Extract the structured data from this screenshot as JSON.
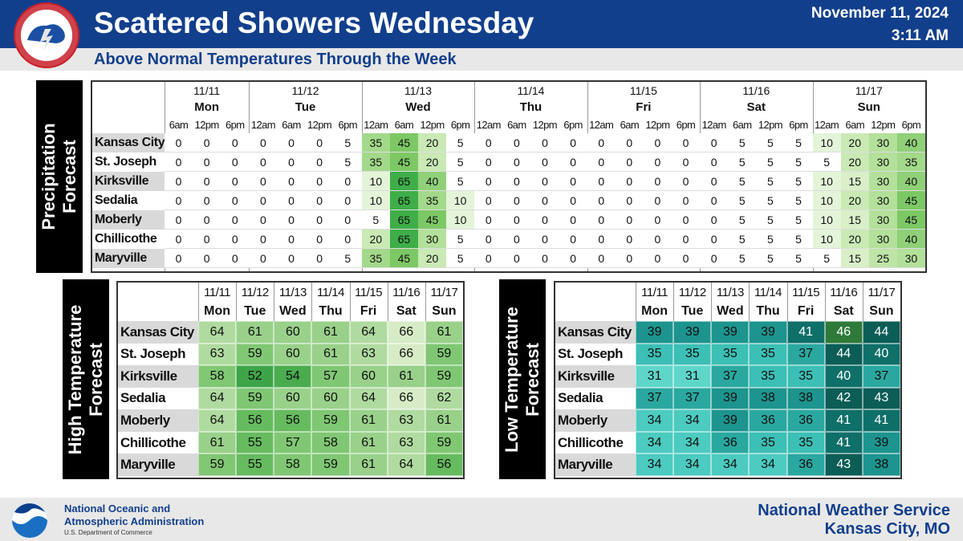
{
  "header": {
    "title": "Scattered Showers Wednesday",
    "subtitle": "Above Normal Temperatures Through the Week",
    "date": "November 11, 2024",
    "time": "3:11 AM"
  },
  "precip": {
    "label": "Precipitation Forecast",
    "groups": [
      {
        "date": "11/11",
        "day": "Mon",
        "times": [
          "6am",
          "12pm",
          "6pm"
        ]
      },
      {
        "date": "11/12",
        "day": "Tue",
        "times": [
          "12am",
          "6am",
          "12pm",
          "6pm"
        ]
      },
      {
        "date": "11/13",
        "day": "Wed",
        "times": [
          "12am",
          "6am",
          "12pm",
          "6pm"
        ]
      },
      {
        "date": "11/14",
        "day": "Thu",
        "times": [
          "12am",
          "6am",
          "12pm",
          "6pm"
        ]
      },
      {
        "date": "11/15",
        "day": "Fri",
        "times": [
          "12am",
          "6am",
          "12pm",
          "6pm"
        ]
      },
      {
        "date": "11/16",
        "day": "Sat",
        "times": [
          "12am",
          "6am",
          "12pm",
          "6pm"
        ]
      },
      {
        "date": "11/17",
        "day": "Sun",
        "times": [
          "12am",
          "6am",
          "12pm",
          "6pm"
        ]
      }
    ],
    "rows": [
      {
        "city": "Kansas City",
        "values": [
          0,
          0,
          0,
          0,
          0,
          0,
          5,
          35,
          45,
          20,
          5,
          0,
          0,
          0,
          0,
          0,
          0,
          0,
          0,
          0,
          5,
          5,
          5,
          10,
          20,
          30,
          40
        ]
      },
      {
        "city": "St. Joseph",
        "values": [
          0,
          0,
          0,
          0,
          0,
          0,
          5,
          35,
          45,
          20,
          5,
          0,
          0,
          0,
          0,
          0,
          0,
          0,
          0,
          0,
          5,
          5,
          5,
          5,
          20,
          30,
          35
        ]
      },
      {
        "city": "Kirksville",
        "values": [
          0,
          0,
          0,
          0,
          0,
          0,
          0,
          10,
          65,
          40,
          5,
          0,
          0,
          0,
          0,
          0,
          0,
          0,
          0,
          0,
          5,
          5,
          5,
          10,
          15,
          30,
          40
        ]
      },
      {
        "city": "Sedalia",
        "values": [
          0,
          0,
          0,
          0,
          0,
          0,
          0,
          10,
          65,
          35,
          10,
          0,
          0,
          0,
          0,
          0,
          0,
          0,
          0,
          0,
          5,
          5,
          5,
          10,
          20,
          30,
          45
        ]
      },
      {
        "city": "Moberly",
        "values": [
          0,
          0,
          0,
          0,
          0,
          0,
          0,
          5,
          65,
          45,
          10,
          0,
          0,
          0,
          0,
          0,
          0,
          0,
          0,
          0,
          5,
          5,
          5,
          10,
          15,
          30,
          45
        ]
      },
      {
        "city": "Chillicothe",
        "values": [
          0,
          0,
          0,
          0,
          0,
          0,
          0,
          20,
          65,
          30,
          5,
          0,
          0,
          0,
          0,
          0,
          0,
          0,
          0,
          0,
          5,
          5,
          5,
          10,
          20,
          30,
          40
        ]
      },
      {
        "city": "Maryville",
        "values": [
          0,
          0,
          0,
          0,
          0,
          0,
          5,
          35,
          45,
          20,
          5,
          0,
          0,
          0,
          0,
          0,
          0,
          0,
          0,
          0,
          5,
          5,
          5,
          5,
          15,
          25,
          30
        ]
      }
    ]
  },
  "high": {
    "label": "High Temperature Forecast",
    "dates": [
      "11/11",
      "11/12",
      "11/13",
      "11/14",
      "11/15",
      "11/16",
      "11/17"
    ],
    "days": [
      "Mon",
      "Tue",
      "Wed",
      "Thu",
      "Fri",
      "Sat",
      "Sun"
    ],
    "rows": [
      {
        "city": "Kansas City",
        "values": [
          64,
          61,
          60,
          61,
          64,
          66,
          61
        ]
      },
      {
        "city": "St. Joseph",
        "values": [
          63,
          59,
          60,
          61,
          63,
          66,
          59
        ]
      },
      {
        "city": "Kirksville",
        "values": [
          58,
          52,
          54,
          57,
          60,
          61,
          59
        ]
      },
      {
        "city": "Sedalia",
        "values": [
          64,
          59,
          60,
          60,
          64,
          66,
          62
        ]
      },
      {
        "city": "Moberly",
        "values": [
          64,
          56,
          56,
          59,
          61,
          63,
          61
        ]
      },
      {
        "city": "Chillicothe",
        "values": [
          61,
          55,
          57,
          58,
          61,
          63,
          59
        ]
      },
      {
        "city": "Maryville",
        "values": [
          59,
          55,
          58,
          59,
          61,
          64,
          56
        ]
      }
    ]
  },
  "low": {
    "label": "Low Temperature Forecast",
    "dates": [
      "11/11",
      "11/12",
      "11/13",
      "11/14",
      "11/15",
      "11/16",
      "11/17"
    ],
    "days": [
      "Mon",
      "Tue",
      "Wed",
      "Thu",
      "Fri",
      "Sat",
      "Sun"
    ],
    "rows": [
      {
        "city": "Kansas City",
        "values": [
          39,
          39,
          39,
          39,
          41,
          46,
          44
        ]
      },
      {
        "city": "St. Joseph",
        "values": [
          35,
          35,
          35,
          35,
          37,
          44,
          40
        ]
      },
      {
        "city": "Kirksville",
        "values": [
          31,
          31,
          37,
          35,
          35,
          40,
          37
        ]
      },
      {
        "city": "Sedalia",
        "values": [
          37,
          37,
          39,
          38,
          38,
          42,
          43
        ]
      },
      {
        "city": "Moberly",
        "values": [
          34,
          34,
          39,
          36,
          36,
          41,
          41
        ]
      },
      {
        "city": "Chillicothe",
        "values": [
          34,
          34,
          36,
          35,
          35,
          41,
          39
        ]
      },
      {
        "city": "Maryville",
        "values": [
          34,
          34,
          34,
          34,
          36,
          43,
          38
        ]
      }
    ]
  },
  "footer": {
    "agency_line1": "National Oceanic and",
    "agency_line2": "Atmospheric Administration",
    "department": "U.S. Department of Commerce",
    "office_line1": "National Weather Service",
    "office_line2": "Kansas City, MO"
  }
}
